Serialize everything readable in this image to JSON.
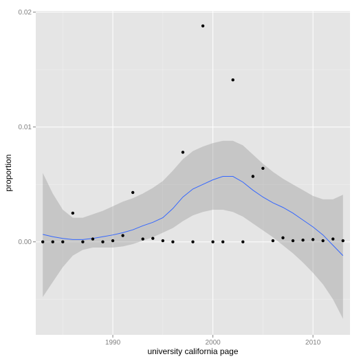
{
  "chart_data": {
    "type": "scatter",
    "title": "",
    "xlabel": "university california page",
    "ylabel": "proportion",
    "xlim": [
      1982.3,
      2013.7
    ],
    "ylim": [
      -0.0081,
      0.0201
    ],
    "x_ticks": [
      1990,
      2000,
      2010
    ],
    "x_tick_labels": [
      "1990",
      "2000",
      "2010"
    ],
    "y_ticks": [
      0.0,
      0.01,
      0.02
    ],
    "y_tick_labels": [
      "0.00",
      "0.01",
      "0.02"
    ],
    "grid": true,
    "legend": "none",
    "points": {
      "x": [
        1983,
        1984,
        1985,
        1986,
        1987,
        1988,
        1989,
        1990,
        1991,
        1992,
        1993,
        1994,
        1995,
        1996,
        1997,
        1998,
        1999,
        2000,
        2001,
        2002,
        2003,
        2004,
        2005,
        2006,
        2007,
        2008,
        2009,
        2010,
        2011,
        2012,
        2013
      ],
      "y": [
        0.0,
        0.0,
        0.0,
        0.0025,
        0.0,
        0.00025,
        0.0,
        0.0001,
        0.00055,
        0.0043,
        0.00025,
        0.0003,
        0.0001,
        0.0,
        0.0078,
        0.0,
        0.0188,
        0.0,
        0.0,
        0.0141,
        0.0,
        0.0057,
        0.0064,
        0.0001,
        0.00035,
        0.0001,
        0.00015,
        0.0002,
        0.0001,
        0.00025,
        0.0001
      ]
    },
    "smooth": {
      "x": [
        1983,
        1984,
        1985,
        1986,
        1987,
        1988,
        1989,
        1990,
        1991,
        1992,
        1993,
        1994,
        1995,
        1996,
        1997,
        1998,
        1999,
        2000,
        2001,
        2002,
        2003,
        2004,
        2005,
        2006,
        2007,
        2008,
        2009,
        2010,
        2011,
        2012,
        2013
      ],
      "y": [
        0.00065,
        0.00045,
        0.0003,
        0.0002,
        0.0002,
        0.0003,
        0.00045,
        0.0006,
        0.0008,
        0.00105,
        0.0014,
        0.0017,
        0.0021,
        0.0029,
        0.0039,
        0.0046,
        0.005,
        0.0054,
        0.0057,
        0.0057,
        0.0052,
        0.0045,
        0.0039,
        0.0034,
        0.003,
        0.0025,
        0.0019,
        0.0013,
        0.0006,
        -0.0003,
        -0.0012
      ],
      "lower": [
        -0.0048,
        -0.0035,
        -0.0022,
        -0.0012,
        -0.0007,
        -0.0005,
        -0.0005,
        -0.0005,
        -0.0004,
        -0.0002,
        0.0001,
        0.0004,
        0.0008,
        0.0012,
        0.0018,
        0.0023,
        0.0026,
        0.0028,
        0.0028,
        0.0026,
        0.0022,
        0.0016,
        0.001,
        0.0004,
        -0.0003,
        -0.001,
        -0.0018,
        -0.0027,
        -0.0037,
        -0.005,
        -0.0067
      ],
      "upper": [
        0.006,
        0.0042,
        0.0028,
        0.0021,
        0.0021,
        0.0024,
        0.0027,
        0.0031,
        0.0035,
        0.0038,
        0.0042,
        0.0047,
        0.0053,
        0.0062,
        0.0072,
        0.0079,
        0.0083,
        0.0086,
        0.0088,
        0.0088,
        0.0084,
        0.0076,
        0.0068,
        0.0061,
        0.0055,
        0.005,
        0.0045,
        0.004,
        0.0037,
        0.0037,
        0.0041
      ]
    },
    "colors": {
      "panel": "#e5e5e5",
      "grid_major": "#ffffff",
      "grid_minor": "#f2f2f2",
      "point": "#000000",
      "line": "#3366ff",
      "band": "#999999"
    }
  }
}
